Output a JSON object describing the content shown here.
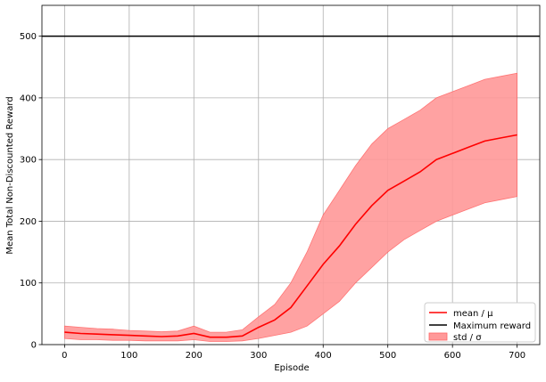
{
  "chart_data": {
    "type": "line",
    "title": "",
    "xlabel": "Episode",
    "ylabel": "Mean Total Non-Discounted Reward",
    "xlim": [
      -35,
      735
    ],
    "ylim": [
      0,
      550
    ],
    "xticks": [
      0,
      100,
      200,
      300,
      400,
      500,
      600,
      700
    ],
    "yticks": [
      0,
      100,
      200,
      300,
      400,
      500
    ],
    "grid": true,
    "legend_position": "bottom-right",
    "colors": {
      "mean": "#ff0000",
      "max": "#000000",
      "std_fill": "#ff9999",
      "std_edge": "#ff6666",
      "grid": "#b0b0b0"
    },
    "series": [
      {
        "name": "mean / μ",
        "kind": "line",
        "x": [
          0,
          25,
          50,
          75,
          100,
          125,
          150,
          175,
          200,
          225,
          250,
          275,
          300,
          325,
          350,
          375,
          400,
          425,
          450,
          475,
          500,
          525,
          550,
          575,
          600,
          625,
          650,
          675,
          700
        ],
        "y": [
          20,
          18,
          17,
          16,
          15,
          14,
          13,
          14,
          18,
          12,
          12,
          14,
          28,
          40,
          60,
          95,
          130,
          160,
          195,
          225,
          250,
          265,
          280,
          300,
          310,
          320,
          330,
          335,
          340
        ]
      },
      {
        "name": "Maximum reward",
        "kind": "hline",
        "y": 500
      },
      {
        "name": "std / σ",
        "kind": "band",
        "x": [
          0,
          25,
          50,
          75,
          100,
          125,
          150,
          175,
          200,
          225,
          250,
          275,
          300,
          325,
          350,
          375,
          400,
          425,
          450,
          475,
          500,
          525,
          550,
          575,
          600,
          625,
          650,
          675,
          700
        ],
        "lower": [
          10,
          8,
          8,
          7,
          7,
          6,
          6,
          6,
          8,
          5,
          5,
          6,
          10,
          15,
          20,
          30,
          50,
          70,
          100,
          125,
          150,
          170,
          185,
          200,
          210,
          220,
          230,
          235,
          240
        ],
        "upper": [
          30,
          28,
          26,
          25,
          23,
          22,
          21,
          22,
          30,
          20,
          20,
          24,
          45,
          65,
          100,
          150,
          210,
          250,
          290,
          325,
          350,
          365,
          380,
          400,
          410,
          420,
          430,
          435,
          440
        ]
      }
    ]
  }
}
